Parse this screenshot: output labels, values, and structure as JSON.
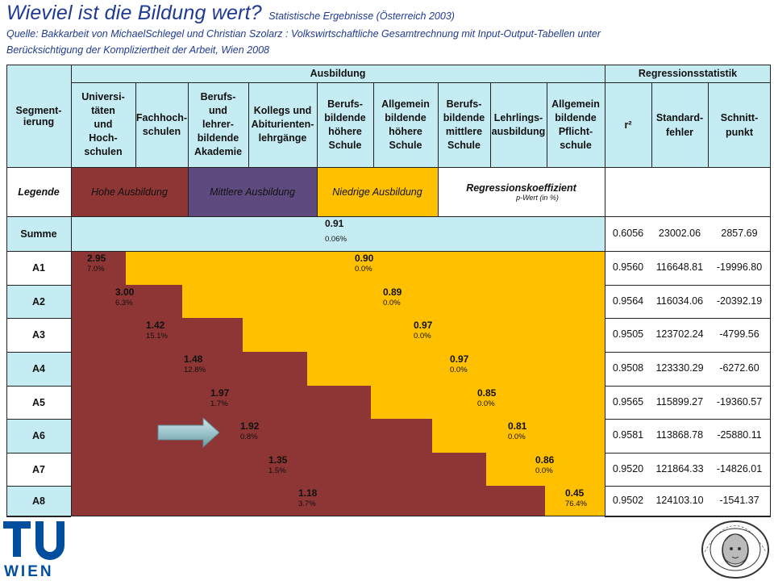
{
  "header": {
    "title": "Wieviel ist die Bildung wert?",
    "subtitle": "Statistische Ergebnisse (Österreich 2003)",
    "source_line1": "Quelle: Bakkarbeit von MichaelSchlegel und Christian Szolarz : Volkswirtschaftliche Gesamtrechnung mit Input-Output-Tabellen unter",
    "source_line2": "Berücksichtigung der Kompliziertheit der Arbeit, Wien 2008"
  },
  "table": {
    "segment_header": "Segment-\nierung",
    "ausbildung_header": "Ausbildung",
    "regression_header": "Regressionsstatistik",
    "education_columns": [
      "Universi-\ntäten\nund\nHoch-\nschulen",
      "Fachhoch-\nschulen",
      "Berufs-\nund\nlehrer-\nbildende\nAkademie",
      "Kollegs und\nAbiturienten-\nlehrgänge",
      "Berufs-\nbildende\nhöhere\nSchule",
      "Allgemein\nbildende\nhöhere\nSchule",
      "Berufs-\nbildende\nmittlere\nSchule",
      "Lehrlings-\nausbildung",
      "Allgemein\nbildende\nPflicht-\nschule"
    ],
    "stat_columns": [
      "r²",
      "Standard-\nfehler",
      "Schnitt-\npunkt"
    ],
    "legend_label": "Legende",
    "legend": {
      "high": "Hohe Ausbildung",
      "mid": "Mittlere Ausbildung",
      "low": "Niedrige Ausbildung",
      "coef": "Regressionskoeffizient",
      "pval": "p-Wert (in %)"
    },
    "colors": {
      "high": "#8e3535",
      "mid": "#5e4a7e",
      "low": "#ffc000",
      "header": "#c6ecf3"
    },
    "summe": {
      "label": "Summe",
      "coef": "0.91",
      "p": "0.06%",
      "r2": "0.6056",
      "se": "23002.06",
      "ic": "2857.69"
    },
    "rows": [
      {
        "label": "A1",
        "hcoef": "2.95",
        "hp": "7.0%",
        "lcoef": "0.90",
        "lp": "0.0%",
        "r2": "0.9560",
        "se": "116648.81",
        "ic": "-19996.80"
      },
      {
        "label": "A2",
        "hcoef": "3.00",
        "hp": "6.3%",
        "lcoef": "0.89",
        "lp": "0.0%",
        "r2": "0.9564",
        "se": "116034.06",
        "ic": "-20392.19"
      },
      {
        "label": "A3",
        "hcoef": "1.42",
        "hp": "15.1%",
        "lcoef": "0.97",
        "lp": "0.0%",
        "r2": "0.9505",
        "se": "123702.24",
        "ic": "-4799.56"
      },
      {
        "label": "A4",
        "hcoef": "1.48",
        "hp": "12.8%",
        "lcoef": "0.97",
        "lp": "0.0%",
        "r2": "0.9508",
        "se": "123330.29",
        "ic": "-6272.60"
      },
      {
        "label": "A5",
        "hcoef": "1.97",
        "hp": "1.7%",
        "lcoef": "0.85",
        "lp": "0.0%",
        "r2": "0.9565",
        "se": "115899.27",
        "ic": "-19360.57"
      },
      {
        "label": "A6",
        "hcoef": "1.92",
        "hp": "0.8%",
        "lcoef": "0.81",
        "lp": "0.0%",
        "r2": "0.9581",
        "se": "113868.78",
        "ic": "-25880.11"
      },
      {
        "label": "A7",
        "hcoef": "1.35",
        "hp": "1.5%",
        "lcoef": "0.86",
        "lp": "0.0%",
        "r2": "0.9520",
        "se": "121864.33",
        "ic": "-14826.01"
      },
      {
        "label": "A8",
        "hcoef": "1.18",
        "hp": "3.7%",
        "lcoef": "0.45",
        "lp": "76.4%",
        "r2": "0.9502",
        "se": "124103.10",
        "ic": "-1541.37"
      }
    ]
  },
  "logos": {
    "tu_top": "TU",
    "tu_bottom": "WIEN",
    "seal_text": "LEIBNIZ SOZIETÄT BERLIN"
  }
}
